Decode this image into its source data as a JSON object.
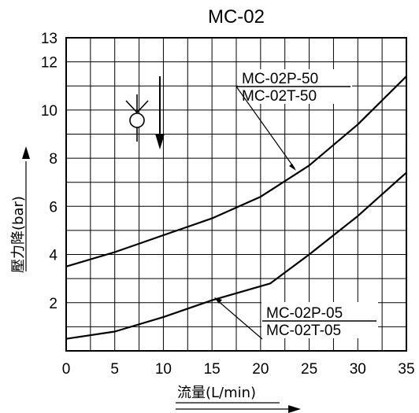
{
  "chart_data": {
    "type": "line",
    "title": "MC-02",
    "xlabel": "流量(L/min)",
    "ylabel": "壓力降(bar)",
    "xlim": [
      0,
      35
    ],
    "ylim": [
      0,
      13
    ],
    "x_ticks": [
      0,
      5,
      10,
      15,
      20,
      25,
      30,
      35
    ],
    "y_ticks": [
      2,
      4,
      6,
      8,
      10,
      12,
      13
    ],
    "grid": true,
    "series": [
      {
        "labels": [
          "MC-02P-50",
          "MC-02T-50"
        ],
        "x": [
          0,
          5,
          10,
          15,
          20,
          25,
          30,
          35
        ],
        "y": [
          3.5,
          4.1,
          4.8,
          5.5,
          6.4,
          7.7,
          9.4,
          11.4
        ]
      },
      {
        "labels": [
          "MC-02P-05",
          "MC-02T-05"
        ],
        "x": [
          0,
          5,
          10,
          15,
          21,
          25,
          30,
          35
        ],
        "y": [
          0.5,
          0.8,
          1.4,
          2.1,
          2.8,
          4.0,
          5.6,
          7.4
        ]
      }
    ]
  }
}
